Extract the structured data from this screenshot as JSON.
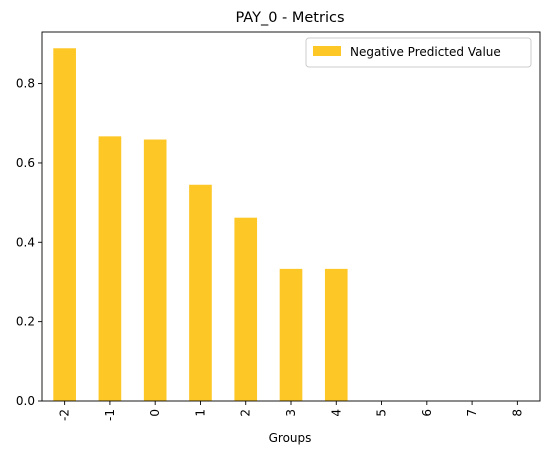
{
  "chart_data": {
    "type": "bar",
    "title": "PAY_0 - Metrics",
    "xlabel": "Groups",
    "ylabel": "",
    "categories": [
      "-2",
      "-1",
      "0",
      "1",
      "2",
      "3",
      "4",
      "5",
      "6",
      "7",
      "8"
    ],
    "series": [
      {
        "name": "Negative Predicted Value",
        "color": "#FDC725",
        "values": [
          0.889,
          0.667,
          0.659,
          0.545,
          0.462,
          0.333,
          0.333,
          0,
          0,
          0,
          0
        ]
      }
    ],
    "ylim": [
      0,
      0.93
    ],
    "yticks": [
      "0.0",
      "0.2",
      "0.4",
      "0.6",
      "0.8"
    ],
    "legend_position": "top-right",
    "grid": false
  }
}
